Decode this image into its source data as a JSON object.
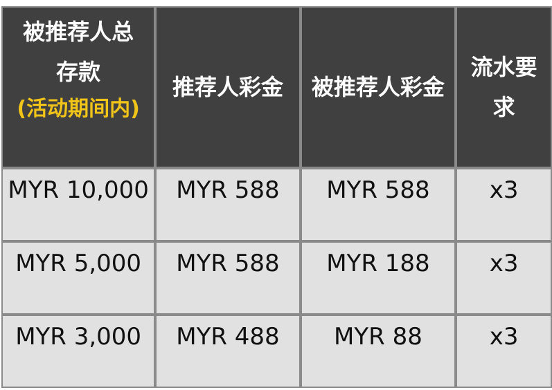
{
  "headers": [
    {
      "label": "被推荐人总存款",
      "note": "(活动期间内)"
    },
    {
      "label": "推荐人彩金"
    },
    {
      "label": "被推荐人彩金"
    },
    {
      "label": "流水要求"
    }
  ],
  "rows": [
    [
      "MYR 10,000",
      "MYR 588",
      "MYR 588",
      "x3"
    ],
    [
      "MYR 5,000",
      "MYR 588",
      "MYR 188",
      "x3"
    ],
    [
      "MYR 3,000",
      "MYR 488",
      "MYR 88",
      "x3"
    ]
  ],
  "colors": {
    "header_bg": "#404040",
    "note": "#f0c419",
    "body_bg": "#e1e1e1",
    "border": "#8a8a8a"
  }
}
